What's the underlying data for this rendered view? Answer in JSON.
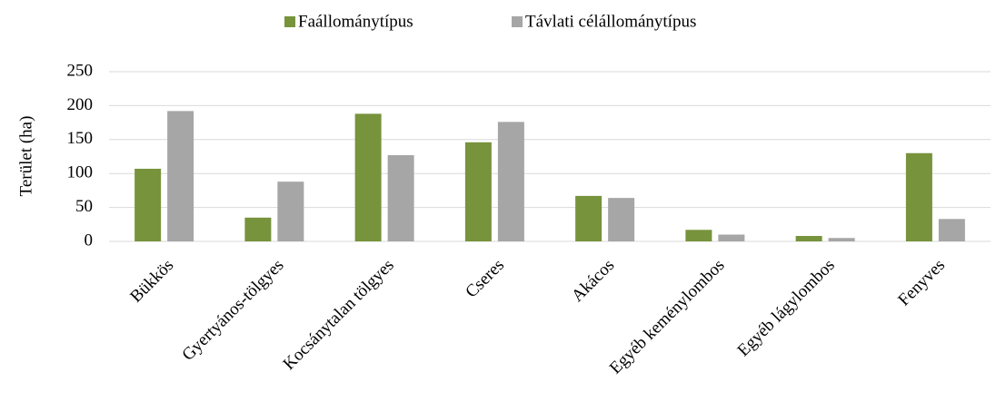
{
  "chart_data": {
    "type": "bar",
    "y_label": "Terület (ha)",
    "categories": [
      "Bükkös",
      "Gyertyános-tölgyes",
      "Kocsánytalan tölgyes",
      "Cseres",
      "Akácos",
      "Egyéb keménylombos",
      "Egyéb lágylombos",
      "Fenyves"
    ],
    "series": [
      {
        "name": "Faállománytípus",
        "color": "#77933c",
        "values": [
          107,
          35,
          188,
          146,
          67,
          17,
          8,
          130
        ]
      },
      {
        "name": "Távlati célállománytípus",
        "color": "#a6a6a6",
        "values": [
          192,
          88,
          127,
          176,
          64,
          10,
          5,
          33
        ]
      }
    ],
    "ylim": [
      0,
      250
    ],
    "yticks": [
      0,
      50,
      100,
      150,
      200,
      250
    ],
    "grid": true,
    "legend": "top"
  }
}
